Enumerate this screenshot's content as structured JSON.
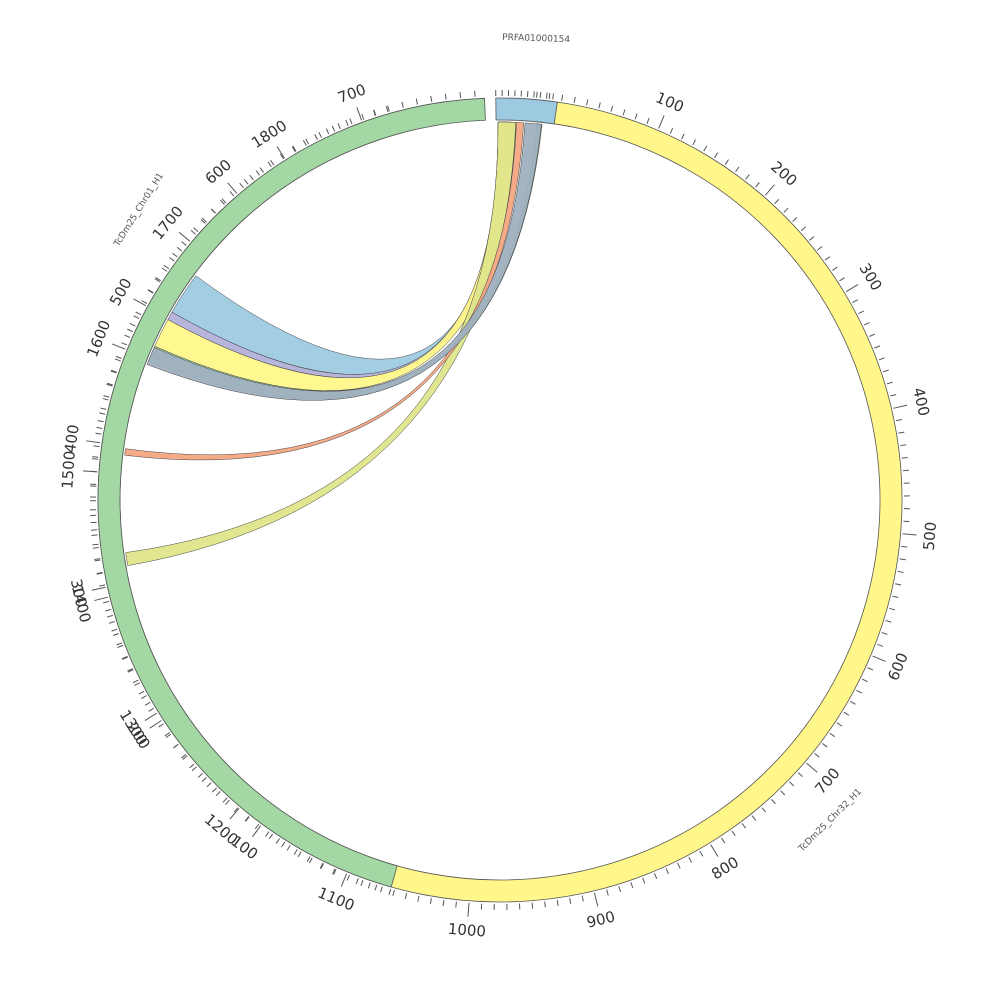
{
  "chromosomes": [
    {
      "id": "chr32",
      "label": "TcDm25_Chr32_H1",
      "color": "#fff78a"
    },
    {
      "id": "chr01",
      "label": "TcDm25_Chr01_H1",
      "color": "#a3d8a5"
    },
    {
      "id": "prfa",
      "label": "PRFA01000154",
      "color": "#9ecae1"
    }
  ],
  "links": [
    {
      "color": "#9ecae1",
      "name": "link-blue"
    },
    {
      "color": "#b3b1d9",
      "name": "link-purple"
    },
    {
      "color": "#fff78a",
      "name": "link-yellow"
    },
    {
      "color": "#a3d8a5",
      "name": "link-green"
    },
    {
      "color": "#dfe58a",
      "name": "link-olive"
    },
    {
      "color": "#f4a582",
      "name": "link-orange"
    },
    {
      "color": "#9fb0bf",
      "name": "link-grey"
    }
  ],
  "tick_labels": {
    "chr32": [
      "100",
      "200",
      "300",
      "400",
      "500",
      "600",
      "700",
      "800",
      "900",
      "1000",
      "1100",
      "1200",
      "1300",
      "1400",
      "1500",
      "1600",
      "1700",
      "1800"
    ],
    "chr01": [
      "100",
      "200",
      "300",
      "400",
      "500",
      "600",
      "700"
    ]
  }
}
